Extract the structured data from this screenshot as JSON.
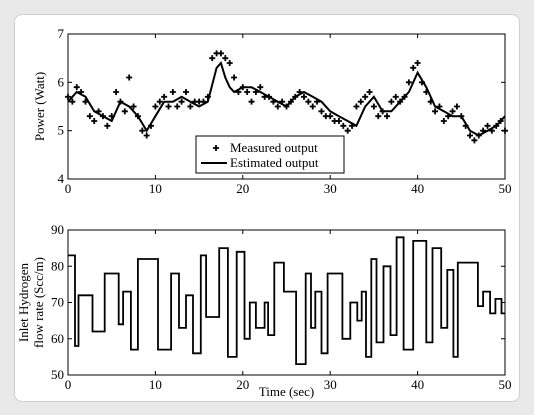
{
  "chart_data": [
    {
      "type": "line",
      "ylabel": "Power (Watt)",
      "xlim": [
        0,
        50
      ],
      "ylim": [
        4,
        7
      ],
      "xticks": [
        "0",
        "10",
        "20",
        "30",
        "40",
        "50"
      ],
      "yticks": [
        "4",
        "5",
        "6",
        "7"
      ],
      "legend_position": "bottom-center",
      "series": [
        {
          "name": "Measured output",
          "marker": "plus",
          "x": [
            0,
            0.5,
            1,
            1.5,
            2,
            2.5,
            3,
            3.5,
            4,
            4.5,
            5,
            5.5,
            6,
            6.5,
            7,
            7.5,
            8,
            8.5,
            9,
            9.5,
            10,
            10.5,
            11,
            11.5,
            12,
            12.5,
            13,
            13.5,
            14,
            14.5,
            15,
            15.5,
            16,
            16.5,
            17,
            17.5,
            18,
            18.5,
            19,
            19.5,
            20,
            20.5,
            21,
            21.5,
            22,
            22.5,
            23,
            23.5,
            24,
            24.5,
            25,
            25.5,
            26,
            26.5,
            27,
            27.5,
            28,
            28.5,
            29,
            29.5,
            30,
            30.5,
            31,
            31.5,
            32,
            32.5,
            33,
            33.5,
            34,
            34.5,
            35,
            35.5,
            36,
            36.5,
            37,
            37.5,
            38,
            38.5,
            39,
            39.5,
            40,
            40.5,
            41,
            41.5,
            42,
            42.5,
            43,
            43.5,
            44,
            44.5,
            45,
            45.5,
            46,
            46.5,
            47,
            47.5,
            48,
            48.5,
            49,
            49.5,
            50
          ],
          "y": [
            5.7,
            5.6,
            5.9,
            5.8,
            5.6,
            5.3,
            5.2,
            5.4,
            5.3,
            5.1,
            5.3,
            5.8,
            5.6,
            5.4,
            6.1,
            5.5,
            5.3,
            5.0,
            4.9,
            5.1,
            5.5,
            5.6,
            5.7,
            5.5,
            5.8,
            5.5,
            5.6,
            5.8,
            5.5,
            5.6,
            5.6,
            5.6,
            5.7,
            6.5,
            6.6,
            6.6,
            6.5,
            6.4,
            6.1,
            5.8,
            5.9,
            5.8,
            5.6,
            5.8,
            5.9,
            5.7,
            5.7,
            5.6,
            5.5,
            5.6,
            5.5,
            5.6,
            5.7,
            5.8,
            5.7,
            5.6,
            5.5,
            5.6,
            5.4,
            5.3,
            5.3,
            5.2,
            5.2,
            5.1,
            5.0,
            5.1,
            5.5,
            5.6,
            5.7,
            5.8,
            5.5,
            5.3,
            5.4,
            5.3,
            5.6,
            5.7,
            5.6,
            5.7,
            6.0,
            6.3,
            6.4,
            6.0,
            5.8,
            5.6,
            5.4,
            5.5,
            5.2,
            5.3,
            5.4,
            5.5,
            5.3,
            5.1,
            4.9,
            4.8,
            4.9,
            5.0,
            5.1,
            5.0,
            5.1,
            5.2,
            5.0
          ]
        },
        {
          "name": "Estimated output",
          "x": [
            0,
            1,
            2,
            3,
            4,
            5,
            6,
            7,
            8,
            9,
            10,
            11,
            12,
            13,
            14,
            15,
            16,
            17,
            17.5,
            18,
            18.5,
            19,
            20,
            21,
            22,
            23,
            24,
            25,
            26,
            27,
            28,
            29,
            30,
            31,
            32,
            33,
            34,
            35,
            36,
            37,
            38,
            39,
            40,
            41,
            42,
            43,
            44,
            45,
            46,
            47,
            48,
            49,
            50
          ],
          "y": [
            5.6,
            5.8,
            5.7,
            5.4,
            5.3,
            5.2,
            5.6,
            5.5,
            5.3,
            5.0,
            5.3,
            5.6,
            5.6,
            5.7,
            5.6,
            5.5,
            5.6,
            6.3,
            6.4,
            6.1,
            5.9,
            5.8,
            5.9,
            5.9,
            5.8,
            5.7,
            5.6,
            5.5,
            5.7,
            5.8,
            5.7,
            5.6,
            5.4,
            5.3,
            5.2,
            5.1,
            5.5,
            5.7,
            5.4,
            5.4,
            5.6,
            5.8,
            6.2,
            5.9,
            5.5,
            5.4,
            5.3,
            5.3,
            5.0,
            4.9,
            5.0,
            5.1,
            5.3
          ]
        }
      ]
    },
    {
      "type": "line",
      "ylabel": "Inlet Hydrogen flow rate (Scc/m)",
      "xlabel": "Time (sec)",
      "xlim": [
        0,
        50
      ],
      "ylim": [
        50,
        90
      ],
      "xticks": [
        "0",
        "10",
        "20",
        "30",
        "40",
        "50"
      ],
      "yticks": [
        "50",
        "60",
        "70",
        "80",
        "90"
      ],
      "series": [
        {
          "step": true,
          "x": [
            0,
            0.8,
            1.2,
            2.8,
            4.2,
            5.8,
            6.3,
            7.2,
            8,
            10.3,
            11.8,
            12.7,
            13.5,
            14.3,
            15.2,
            15.8,
            17.3,
            18.3,
            19.3,
            20.2,
            20.8,
            21.5,
            22.5,
            22.9,
            23.6,
            24.7,
            26.1,
            27.2,
            27.8,
            28.3,
            29.0,
            29.7,
            31.4,
            32.3,
            33.1,
            33.6,
            34.1,
            34.7,
            35.3,
            36.1,
            36.9,
            37.6,
            38.4,
            39.5,
            41.0,
            41.7,
            42.7,
            43.4,
            44.1,
            44.6,
            46.9,
            47.5,
            48.3,
            48.9,
            49.6
          ],
          "y": [
            83,
            58,
            72,
            62,
            78,
            64,
            73,
            57,
            82,
            57,
            78,
            63,
            72,
            56,
            83,
            66,
            85,
            55,
            84,
            60,
            70,
            63,
            70,
            61,
            81,
            73,
            53,
            78,
            63,
            73,
            56,
            78,
            60,
            70,
            65,
            73,
            55,
            82,
            59,
            80,
            61,
            88,
            57,
            87,
            59,
            85,
            63,
            79,
            55,
            81,
            69,
            73,
            67,
            71,
            67
          ]
        }
      ]
    }
  ]
}
